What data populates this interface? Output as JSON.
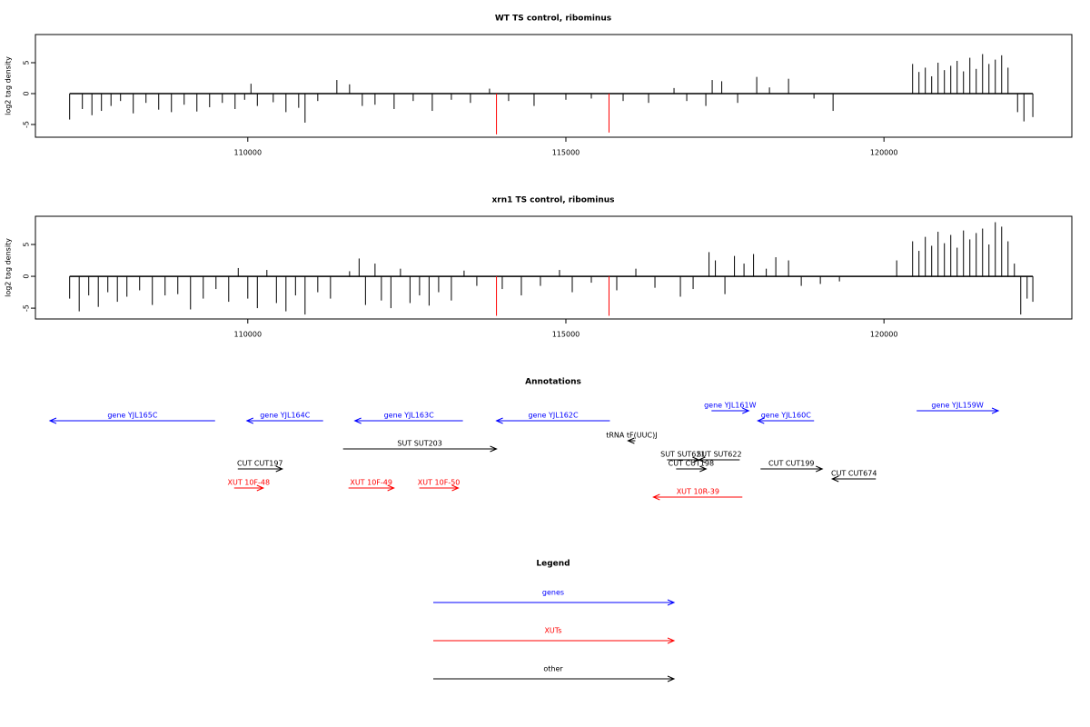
{
  "chart_data": [
    {
      "type": "bar",
      "title": "WT TS control, ribominus",
      "y_label": "log2 tag density",
      "xlim": [
        106662,
        122953
      ],
      "ylim": [
        -7.06,
        9.56
      ],
      "xticks": [
        110000,
        115000,
        120000
      ],
      "yticks": [
        -5,
        0,
        5
      ],
      "series": [
        {
          "color": "#000000",
          "x": [
            107200,
            107400,
            107550,
            107700,
            107850,
            108000,
            108200,
            108400,
            108600,
            108800,
            109000,
            109200,
            109400,
            109600,
            109800,
            109950,
            110050,
            110150,
            110400,
            110600,
            110800,
            110900,
            111100,
            111400,
            111600,
            111800,
            112000,
            112300,
            112600,
            112900,
            113200,
            113500,
            113800,
            114100,
            114500,
            115000,
            115400,
            115900,
            116300,
            116700,
            116900,
            117200,
            117300,
            117450,
            117700,
            118000,
            118200,
            118500,
            118900,
            119200,
            120450,
            120550,
            120650,
            120750,
            120850,
            120950,
            121050,
            121150,
            121250,
            121350,
            121450,
            121550,
            121650,
            121750,
            121850,
            121950,
            122100,
            122200,
            122340
          ],
          "values": [
            -4.2,
            -2.5,
            -3.5,
            -2.8,
            -2.0,
            -1.2,
            -3.2,
            -1.5,
            -2.6,
            -3.0,
            -1.8,
            -2.9,
            -2.2,
            -1.5,
            -2.5,
            -1.0,
            1.6,
            -2.0,
            -1.4,
            -3.0,
            -2.3,
            -4.7,
            -1.2,
            2.2,
            1.5,
            -2.0,
            -1.8,
            -2.5,
            -1.2,
            -2.8,
            -1.0,
            -1.5,
            0.8,
            -1.2,
            -2.0,
            -1.0,
            -0.8,
            -1.2,
            -1.5,
            0.9,
            -1.2,
            -2.0,
            2.2,
            2.0,
            -1.5,
            2.7,
            1.0,
            2.4,
            -0.8,
            -2.8,
            4.8,
            3.5,
            4.2,
            2.8,
            5.0,
            3.8,
            4.5,
            5.3,
            3.6,
            5.8,
            4.0,
            6.4,
            4.8,
            5.5,
            6.2,
            4.2,
            -3.0,
            -4.5,
            -3.8
          ]
        },
        {
          "color": "#ff0000",
          "x": [
            113909,
            115678
          ],
          "values": [
            -6.6,
            -6.3
          ]
        }
      ]
    },
    {
      "type": "bar",
      "title": "xrn1 TS control, ribominus",
      "y_label": "log2 tag density",
      "xlim": [
        106662,
        122953
      ],
      "ylim": [
        -6.7,
        9.43
      ],
      "xticks": [
        110000,
        115000,
        120000
      ],
      "yticks": [
        -5,
        0,
        5
      ],
      "series": [
        {
          "color": "#000000",
          "x": [
            107200,
            107350,
            107500,
            107650,
            107800,
            107950,
            108100,
            108300,
            108500,
            108700,
            108900,
            109100,
            109300,
            109500,
            109700,
            109850,
            110000,
            110150,
            110300,
            110450,
            110600,
            110750,
            110900,
            111100,
            111300,
            111600,
            111750,
            111850,
            112000,
            112100,
            112250,
            112400,
            112550,
            112700,
            112850,
            113000,
            113200,
            113400,
            113600,
            114000,
            114300,
            114600,
            114900,
            115100,
            115400,
            115800,
            116100,
            116400,
            116800,
            117000,
            117250,
            117350,
            117500,
            117650,
            117800,
            117950,
            118150,
            118300,
            118500,
            118700,
            119000,
            119300,
            120200,
            120450,
            120550,
            120650,
            120750,
            120850,
            120950,
            121050,
            121150,
            121250,
            121350,
            121450,
            121550,
            121650,
            121750,
            121850,
            121950,
            122050,
            122150,
            122250,
            122340
          ],
          "values": [
            -3.5,
            -5.5,
            -3.0,
            -4.8,
            -2.5,
            -4.0,
            -3.2,
            -2.2,
            -4.5,
            -3.0,
            -2.8,
            -5.2,
            -3.5,
            -2.0,
            -4.0,
            1.3,
            -3.5,
            -5.0,
            1.0,
            -4.2,
            -5.5,
            -3.0,
            -6.0,
            -2.5,
            -3.5,
            0.8,
            2.8,
            -4.5,
            2.0,
            -3.8,
            -5.0,
            1.2,
            -4.2,
            -3.0,
            -4.6,
            -2.5,
            -3.8,
            0.9,
            -1.5,
            -2.0,
            -3.0,
            -1.5,
            1.0,
            -2.5,
            -1.0,
            -2.2,
            1.2,
            -1.8,
            -3.2,
            -2.0,
            3.8,
            2.5,
            -2.8,
            3.2,
            2.0,
            3.5,
            1.2,
            3.0,
            2.5,
            -1.5,
            -1.2,
            -0.8,
            2.5,
            5.5,
            4.0,
            6.2,
            4.8,
            7.0,
            5.2,
            6.5,
            4.5,
            7.2,
            5.8,
            6.8,
            7.5,
            5.0,
            8.5,
            7.8,
            5.5,
            2.0,
            -6.0,
            -3.5,
            -4.0
          ]
        },
        {
          "color": "#ff0000",
          "x": [
            113909,
            115678
          ],
          "values": [
            -6.2,
            -6.2
          ]
        }
      ]
    }
  ],
  "annotations": {
    "title": "Annotations",
    "features": [
      {
        "label": "gene YJL165C",
        "color": "#0000ff",
        "start": 106890,
        "end": 109486,
        "strand": "-"
      },
      {
        "label": "gene YJL164C",
        "color": "#0000ff",
        "start": 109986,
        "end": 111184,
        "strand": "-"
      },
      {
        "label": "gene YJL163C",
        "color": "#0000ff",
        "start": 111683,
        "end": 113381,
        "strand": "-"
      },
      {
        "label": "gene YJL162C",
        "color": "#0000ff",
        "start": 113909,
        "end": 115692,
        "strand": "-"
      },
      {
        "label": "gene YJL161W",
        "color": "#0000ff",
        "start": 117289,
        "end": 117874,
        "strand": "+"
      },
      {
        "label": "gene YJL160C",
        "color": "#0000ff",
        "start": 118017,
        "end": 118901,
        "strand": "-"
      },
      {
        "label": "gene YJL159W",
        "color": "#0000ff",
        "start": 120514,
        "end": 121797,
        "strand": "+"
      },
      {
        "label": "tRNA tF(UUC)J",
        "color": "#000000",
        "start": 115977,
        "end": 116091,
        "strand": "-"
      },
      {
        "label": "SUT SUT203",
        "color": "#000000",
        "start": 111498,
        "end": 113909,
        "strand": "+"
      },
      {
        "label": "CUT CUT197",
        "color": "#000000",
        "start": 109843,
        "end": 110542,
        "strand": "+"
      },
      {
        "label": "SUT SUT621",
        "color": "#000000",
        "start": 116590,
        "end": 117090,
        "strand": "+"
      },
      {
        "label": "SUT SUT622",
        "color": "#000000",
        "start": 117090,
        "end": 117732,
        "strand": "-"
      },
      {
        "label": "CUT CUT198",
        "color": "#000000",
        "start": 116733,
        "end": 117204,
        "strand": "+"
      },
      {
        "label": "CUT CUT199",
        "color": "#000000",
        "start": 118060,
        "end": 119030,
        "strand": "+"
      },
      {
        "label": "CUT CUT674",
        "color": "#000000",
        "start": 119187,
        "end": 119872,
        "strand": "-"
      },
      {
        "label": "XUT 10F-48",
        "color": "#ff0000",
        "start": 109786,
        "end": 110243,
        "strand": "+"
      },
      {
        "label": "XUT 10F-49",
        "color": "#ff0000",
        "start": 111583,
        "end": 112297,
        "strand": "+"
      },
      {
        "label": "XUT 10F-50",
        "color": "#ff0000",
        "start": 112696,
        "end": 113309,
        "strand": "+"
      },
      {
        "label": "XUT 10R-39",
        "color": "#ff0000",
        "start": 116376,
        "end": 117774,
        "strand": "-"
      }
    ]
  },
  "legend": {
    "title": "Legend",
    "items": [
      {
        "label": "genes",
        "color": "#0000ff"
      },
      {
        "label": "XUTs",
        "color": "#ff0000"
      },
      {
        "label": "other",
        "color": "#000000"
      }
    ]
  }
}
